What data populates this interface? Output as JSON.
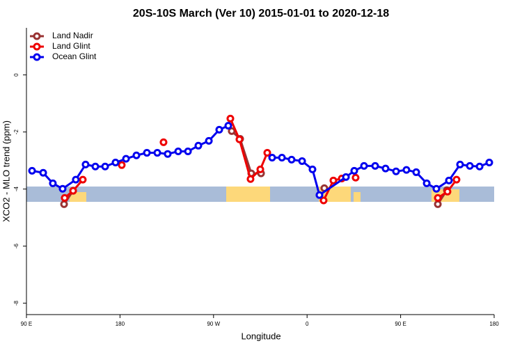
{
  "chart_data": {
    "type": "line",
    "title": "20S-10S March (Ver 10)   2015-01-01 to 2020-12-18",
    "x_label": "Longitude",
    "y_label": "XCO2 - MLO trend (ppm)",
    "xlim": [
      90,
      540
    ],
    "ylim": [
      -8.4,
      1.65
    ],
    "xticks": [
      {
        "value": 90,
        "label": "90 E"
      },
      {
        "value": 180,
        "label": "180"
      },
      {
        "value": 270,
        "label": "90 W"
      },
      {
        "value": 360,
        "label": "0"
      },
      {
        "value": 450,
        "label": "90 E"
      },
      {
        "value": 540,
        "label": "180"
      }
    ],
    "yticks": [
      0,
      -2,
      -4,
      -6,
      -8
    ],
    "legend": "top-left",
    "series": [
      {
        "name": "Land Nadir",
        "color": "#993333",
        "x": [
          126.2,
          134.9,
          null,
          287.5,
          295.6,
          306.3,
          315.7,
          null,
          376.6,
          null,
          485.8,
          494.5
        ],
        "values": [
          -4.53,
          -4.06,
          null,
          -1.97,
          -2.24,
          -3.45,
          -3.45,
          null,
          -3.97,
          null,
          -4.53,
          -4.04
        ]
      },
      {
        "name": "Land Glint",
        "color": "#ee0000",
        "x": [
          126.8,
          134.9,
          144.2,
          null,
          181.7,
          null,
          221.9,
          null,
          286.2,
          294.9,
          305.6,
          315.0,
          321.7,
          null,
          375.9,
          385.3,
          393.4,
          null,
          406.7,
          null,
          485.8,
          495.1,
          503.8
        ],
        "values": [
          -4.31,
          -4.06,
          -3.67,
          null,
          -3.16,
          null,
          -2.36,
          null,
          -1.53,
          -2.26,
          -3.65,
          -3.31,
          -2.73,
          null,
          -4.4,
          -3.7,
          -3.63,
          null,
          -3.6,
          null,
          -4.31,
          -4.09,
          -3.67
        ]
      },
      {
        "name": "Ocean Glint",
        "color": "#0000ee",
        "x": [
          95.4,
          106.1,
          115.4,
          124.8,
          137.5,
          146.9,
          156.3,
          165.7,
          175.7,
          185.8,
          195.8,
          205.9,
          215.9,
          225.9,
          236.0,
          245.4,
          255.4,
          265.5,
          275.5,
          284.2,
          null,
          326.4,
          335.8,
          345.1,
          355.2,
          365.2,
          371.9,
          397.4,
          405.4,
          414.8,
          425.5,
          435.5,
          445.6,
          455.6,
          465.0,
          475.1,
          484.4,
          496.5,
          507.2,
          516.6,
          526.0,
          535.3
        ],
        "values": [
          -3.36,
          -3.43,
          -3.8,
          -3.99,
          -3.67,
          -3.14,
          -3.21,
          -3.21,
          -3.07,
          -2.94,
          -2.82,
          -2.73,
          -2.73,
          -2.77,
          -2.68,
          -2.68,
          -2.48,
          -2.31,
          -1.92,
          -1.78,
          null,
          -2.9,
          -2.9,
          -2.97,
          -3.02,
          -3.31,
          -4.21,
          -3.58,
          -3.36,
          -3.19,
          -3.19,
          -3.28,
          -3.38,
          -3.33,
          -3.41,
          -3.8,
          -3.99,
          -3.7,
          -3.14,
          -3.19,
          -3.21,
          -3.07
        ]
      }
    ]
  }
}
